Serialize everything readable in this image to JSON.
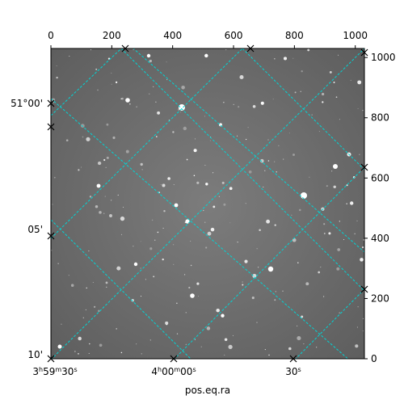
{
  "figure": {
    "xlabel": "pos.eq.ra",
    "colors": {
      "grid": "#00d5d5",
      "frame": "#000000",
      "background_sky": "#7a7a7a"
    }
  },
  "pixel_axes": {
    "top_ticks": [
      "0",
      "200",
      "400",
      "600",
      "800",
      "1000"
    ],
    "right_ticks": [
      "0",
      "200",
      "400",
      "600",
      "800",
      "1000"
    ]
  },
  "world_axes": {
    "ra_ticks": [
      {
        "h": "3",
        "m": "59",
        "s": "30"
      },
      {
        "h": "4",
        "m": "00",
        "s": "00"
      },
      {
        "s": "30"
      }
    ],
    "dec_ticks": [
      {
        "text": "51°00'"
      },
      {
        "text": "05'"
      },
      {
        "text": "10'"
      }
    ]
  }
}
